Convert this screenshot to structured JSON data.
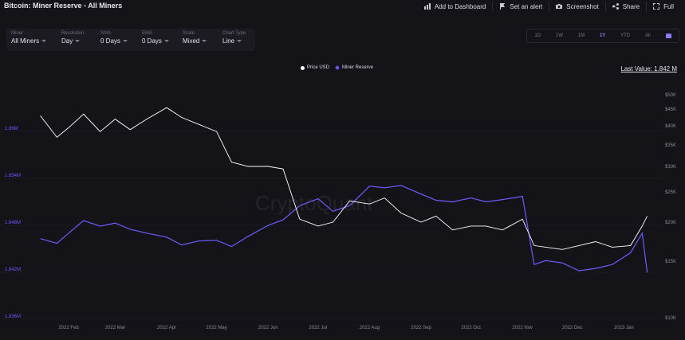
{
  "header": {
    "title": "Bitcoin: Miner Reserve - All Miners",
    "actions": [
      {
        "label": "Add to Dashboard",
        "icon": "chart-icon"
      },
      {
        "label": "Set an alert",
        "icon": "alert-icon"
      },
      {
        "label": "Screenshot",
        "icon": "camera-icon"
      },
      {
        "label": "Share",
        "icon": "share-icon"
      },
      {
        "label": "Full",
        "icon": "fullscreen-icon"
      }
    ]
  },
  "filters": [
    {
      "label": "Miner",
      "value": "All Miners"
    },
    {
      "label": "Resolution",
      "value": "Day"
    },
    {
      "label": "SMA",
      "value": "0 Days"
    },
    {
      "label": "EMA",
      "value": "0 Days"
    },
    {
      "label": "Scale",
      "value": "Mixed"
    },
    {
      "label": "Chart Type",
      "value": "Line"
    }
  ],
  "ranges": [
    "1D",
    "1W",
    "1M",
    "1Y",
    "YTD",
    "All"
  ],
  "active_range": "1Y",
  "legend": {
    "price": "Price USD",
    "reserve": "Miner Reserve"
  },
  "last_value": "Last Value: 1.842 M",
  "watermark": "CryptoQuant",
  "colors": {
    "background": "#141318",
    "reserve": "#6a5cff",
    "price": "#ffffff",
    "accent": "#8b7cff"
  },
  "chart_data": {
    "type": "line",
    "x_tick_labels": [
      "2022 Feb",
      "2022 Mar",
      "2022 Apr",
      "2022 May",
      "2022 Jun",
      "2022 Jul",
      "2022 Aug",
      "2022 Sep",
      "2022 Oct",
      "2022 Nov",
      "2022 Dec",
      "2023 Jan"
    ],
    "left_axis": {
      "ticks": [
        "1.836M",
        "1.842M",
        "1.848M",
        "1.854M",
        "1.86M"
      ],
      "range": [
        1.836,
        1.866
      ],
      "unit": "M"
    },
    "right_axis": {
      "ticks": [
        "$10K",
        "$15K",
        "$20K",
        "$25K",
        "$30K",
        "$35K",
        "$40K",
        "$45K",
        "$50K"
      ],
      "range_usd": [
        10000,
        50000
      ]
    },
    "series": [
      {
        "name": "Miner Reserve",
        "axis": "left",
        "x": [
          "2022-01-15",
          "2022-01-25",
          "2022-02-01",
          "2022-02-10",
          "2022-02-20",
          "2022-03-01",
          "2022-03-10",
          "2022-03-20",
          "2022-04-01",
          "2022-04-10",
          "2022-04-20",
          "2022-05-01",
          "2022-05-10",
          "2022-05-20",
          "2022-06-01",
          "2022-06-10",
          "2022-06-20",
          "2022-07-01",
          "2022-07-10",
          "2022-07-20",
          "2022-08-01",
          "2022-08-10",
          "2022-08-20",
          "2022-09-01",
          "2022-09-10",
          "2022-09-20",
          "2022-10-01",
          "2022-10-10",
          "2022-10-20",
          "2022-11-01",
          "2022-11-08",
          "2022-11-15",
          "2022-11-25",
          "2022-12-05",
          "2022-12-15",
          "2022-12-25",
          "2023-01-05",
          "2023-01-12",
          "2023-01-15"
        ],
        "values": [
          1.8463,
          1.8457,
          1.847,
          1.8486,
          1.8479,
          1.8483,
          1.8475,
          1.847,
          1.8465,
          1.8455,
          1.846,
          1.8461,
          1.8453,
          1.8466,
          1.848,
          1.8487,
          1.8505,
          1.8514,
          1.8498,
          1.8505,
          1.853,
          1.8528,
          1.8531,
          1.852,
          1.8512,
          1.851,
          1.8515,
          1.851,
          1.8513,
          1.8517,
          1.843,
          1.8435,
          1.8432,
          1.8422,
          1.8425,
          1.843,
          1.8445,
          1.847,
          1.842
        ]
      },
      {
        "name": "Price USD",
        "axis": "right",
        "x": [
          "2022-01-15",
          "2022-01-25",
          "2022-02-01",
          "2022-02-10",
          "2022-02-20",
          "2022-03-01",
          "2022-03-10",
          "2022-03-20",
          "2022-04-01",
          "2022-04-10",
          "2022-04-20",
          "2022-05-01",
          "2022-05-10",
          "2022-05-20",
          "2022-06-01",
          "2022-06-10",
          "2022-06-20",
          "2022-07-01",
          "2022-07-10",
          "2022-07-20",
          "2022-08-01",
          "2022-08-10",
          "2022-08-20",
          "2022-09-01",
          "2022-09-10",
          "2022-09-20",
          "2022-10-01",
          "2022-10-10",
          "2022-10-20",
          "2022-11-01",
          "2022-11-08",
          "2022-11-15",
          "2022-11-25",
          "2022-12-05",
          "2022-12-15",
          "2022-12-25",
          "2023-01-05",
          "2023-01-12",
          "2023-01-15"
        ],
        "values": [
          43000,
          37000,
          39500,
          43500,
          38500,
          42000,
          39000,
          42000,
          45500,
          42500,
          40500,
          38500,
          31000,
          30000,
          30000,
          29500,
          20500,
          19500,
          20000,
          23500,
          23000,
          24000,
          21500,
          20000,
          21000,
          19000,
          19500,
          19500,
          19000,
          20500,
          17000,
          16800,
          16500,
          17000,
          17500,
          16800,
          17000,
          19500,
          21000
        ]
      }
    ]
  }
}
